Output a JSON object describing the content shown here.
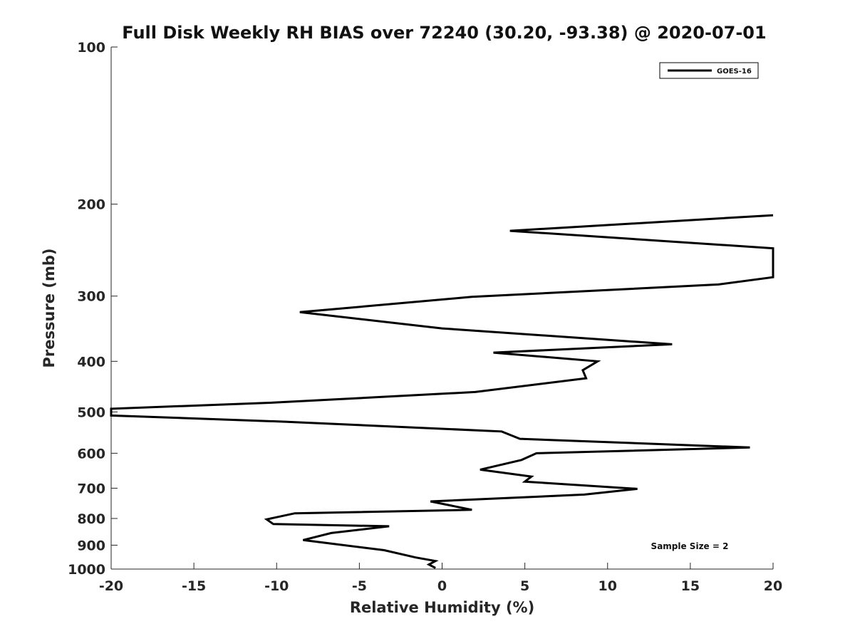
{
  "chart_data": {
    "type": "line",
    "title": "Full Disk Weekly RH BIAS over 72240 (30.20, -93.38) @ 2020-07-01",
    "xlabel": "Relative Humidity (%)",
    "ylabel": "Pressure (mb)",
    "xlim": [
      -20,
      20
    ],
    "ylim": [
      100,
      1000
    ],
    "yscale": "log",
    "y_reversed": true,
    "grid": false,
    "legend_position": "top-right",
    "xticks": [
      "-20",
      "-15",
      "-10",
      "-5",
      "0",
      "5",
      "10",
      "15",
      "20"
    ],
    "xtick_values": [
      -20,
      -15,
      -10,
      -5,
      0,
      5,
      10,
      15,
      20
    ],
    "yticks": [
      "100",
      "200",
      "300",
      "400",
      "500",
      "600",
      "700",
      "800",
      "900",
      "1000"
    ],
    "ytick_values": [
      100,
      200,
      300,
      400,
      500,
      600,
      700,
      800,
      900,
      1000
    ],
    "annotation": "Sample Size = 2",
    "series": [
      {
        "name": "GOES-16",
        "color": "#000000",
        "points": [
          {
            "x": 20.0,
            "y": 210
          },
          {
            "x": 4.1,
            "y": 225
          },
          {
            "x": 20.0,
            "y": 243
          },
          {
            "x": 20.0,
            "y": 276
          },
          {
            "x": 16.7,
            "y": 285
          },
          {
            "x": 1.8,
            "y": 301
          },
          {
            "x": -8.6,
            "y": 322
          },
          {
            "x": 0.0,
            "y": 346
          },
          {
            "x": 13.9,
            "y": 371
          },
          {
            "x": 3.1,
            "y": 385
          },
          {
            "x": 9.4,
            "y": 400
          },
          {
            "x": 8.5,
            "y": 416
          },
          {
            "x": 8.7,
            "y": 431
          },
          {
            "x": 2.0,
            "y": 458
          },
          {
            "x": -10.2,
            "y": 480
          },
          {
            "x": -20.0,
            "y": 493
          },
          {
            "x": -20.0,
            "y": 508
          },
          {
            "x": -9.5,
            "y": 522
          },
          {
            "x": 3.6,
            "y": 545
          },
          {
            "x": 4.7,
            "y": 563
          },
          {
            "x": 18.6,
            "y": 585
          },
          {
            "x": 5.7,
            "y": 600
          },
          {
            "x": 4.8,
            "y": 618
          },
          {
            "x": 2.3,
            "y": 645
          },
          {
            "x": 5.4,
            "y": 665
          },
          {
            "x": 5.0,
            "y": 680
          },
          {
            "x": 11.8,
            "y": 702
          },
          {
            "x": 8.6,
            "y": 720
          },
          {
            "x": -0.7,
            "y": 742
          },
          {
            "x": 1.8,
            "y": 770
          },
          {
            "x": -8.9,
            "y": 782
          },
          {
            "x": -10.6,
            "y": 803
          },
          {
            "x": -10.2,
            "y": 820
          },
          {
            "x": -3.2,
            "y": 828
          },
          {
            "x": -6.7,
            "y": 853
          },
          {
            "x": -8.4,
            "y": 880
          },
          {
            "x": -3.5,
            "y": 920
          },
          {
            "x": -1.6,
            "y": 950
          },
          {
            "x": -0.4,
            "y": 965
          },
          {
            "x": -0.8,
            "y": 980
          },
          {
            "x": -0.4,
            "y": 995
          }
        ]
      }
    ]
  }
}
